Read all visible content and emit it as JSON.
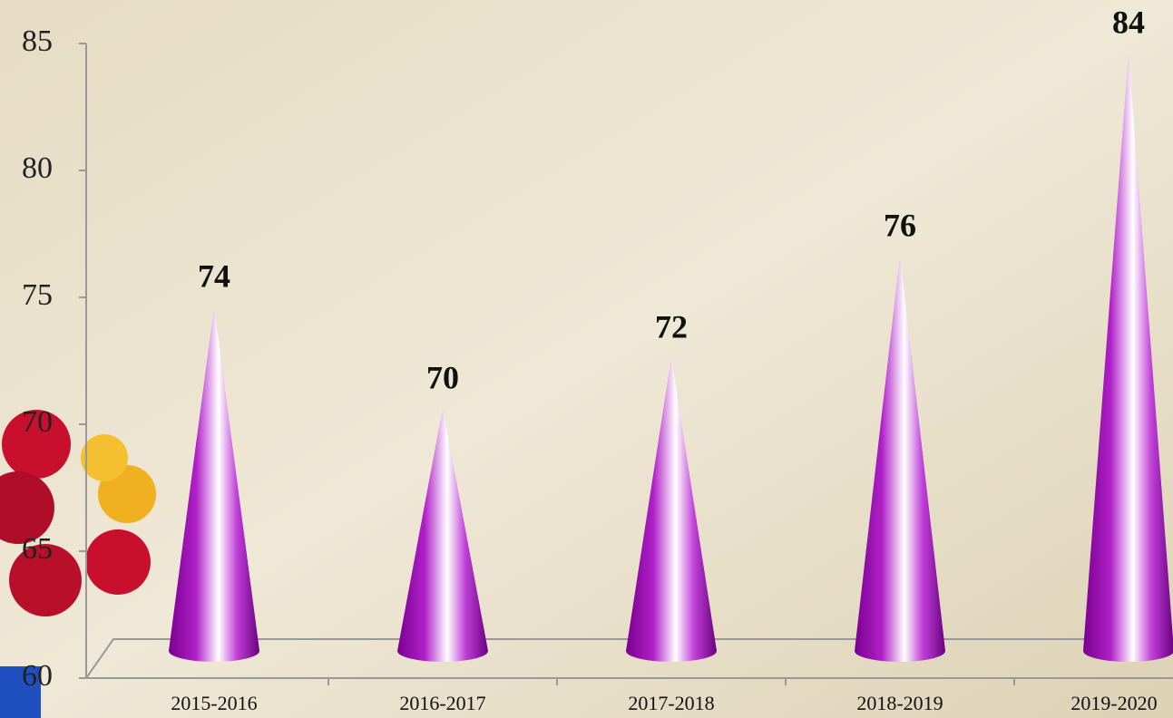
{
  "chart_data": {
    "type": "cone",
    "categories": [
      "2015-2016",
      "2016-2017",
      "2017-2018",
      "2018-2019",
      "2019-2020"
    ],
    "values": [
      74,
      70,
      72,
      76,
      84
    ],
    "color": "#9a10b4",
    "ylim": [
      60,
      85
    ],
    "yticks": [
      60,
      65,
      70,
      75,
      80,
      85
    ]
  }
}
